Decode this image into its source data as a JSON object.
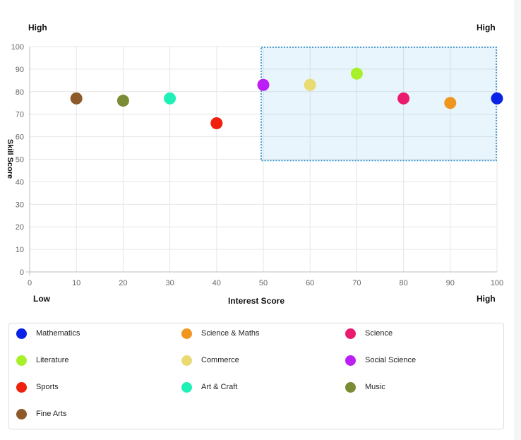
{
  "corners": {
    "top_left": "High",
    "top_right": "High",
    "bottom_left": "Low",
    "bottom_right": "High"
  },
  "chart_data": {
    "type": "scatter",
    "xlabel": "Interest Score",
    "ylabel": "Skill Score",
    "xlim": [
      0,
      100
    ],
    "ylim": [
      0,
      100
    ],
    "xticks": [
      0,
      10,
      20,
      30,
      40,
      50,
      60,
      70,
      80,
      90,
      100
    ],
    "yticks": [
      0,
      10,
      20,
      30,
      40,
      50,
      60,
      70,
      80,
      90,
      100
    ],
    "grid": true,
    "highlight_region": {
      "x": [
        50,
        100
      ],
      "y": [
        50,
        100
      ]
    },
    "series": [
      {
        "name": "Mathematics",
        "color": "#0a22e6",
        "x": 100,
        "y": 77
      },
      {
        "name": "Science & Maths",
        "color": "#f0961e",
        "x": 90,
        "y": 75
      },
      {
        "name": "Science",
        "color": "#ea1a6e",
        "x": 80,
        "y": 77
      },
      {
        "name": "Literature",
        "color": "#a8f02a",
        "x": 70,
        "y": 88
      },
      {
        "name": "Commerce",
        "color": "#e9db72",
        "x": 60,
        "y": 83
      },
      {
        "name": "Social Science",
        "color": "#bb1ff5",
        "x": 50,
        "y": 83
      },
      {
        "name": "Sports",
        "color": "#f0200e",
        "x": 40,
        "y": 66
      },
      {
        "name": "Art & Craft",
        "color": "#1ff0b6",
        "x": 30,
        "y": 77
      },
      {
        "name": "Music",
        "color": "#7a8c34",
        "x": 20,
        "y": 76
      },
      {
        "name": "Fine Arts",
        "color": "#8e5a2a",
        "x": 10,
        "y": 77
      }
    ]
  }
}
